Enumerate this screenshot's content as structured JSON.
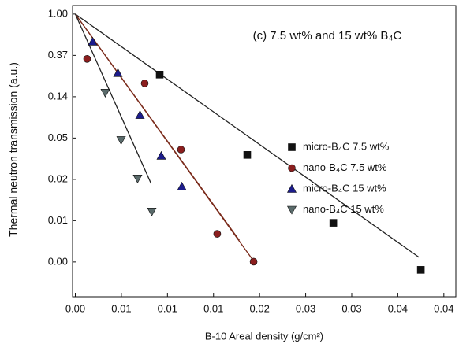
{
  "chart_data": {
    "type": "scatter",
    "title": "(c) 7.5 wt% and 15 wt% B₄C",
    "x_label": "B-10 Areal density (g/cm²)",
    "y_label": "Thermal neutron transmission (a.u.)",
    "log_y": true,
    "xlim": [
      -0.0003,
      0.0413
    ],
    "ylim": [
      0.00107,
      1.23
    ],
    "xticks": [
      {
        "value": 0,
        "label": "0.00"
      },
      {
        "value": 0.005,
        "label": "0.01"
      },
      {
        "value": 0.01,
        "label": "0.01"
      },
      {
        "value": 0.015,
        "label": "0.01"
      },
      {
        "value": 0.02,
        "label": "0.02"
      },
      {
        "value": 0.025,
        "label": "0.03"
      },
      {
        "value": 0.03,
        "label": "0.03"
      },
      {
        "value": 0.035,
        "label": "0.04"
      },
      {
        "value": 0.04,
        "label": "0.04"
      }
    ],
    "yticks": [
      {
        "value": 1,
        "label": "1.00"
      },
      {
        "value": 0.3679,
        "label": "0.37"
      },
      {
        "value": 0.1353,
        "label": "0.14"
      },
      {
        "value": 0.0498,
        "label": "0.05"
      },
      {
        "value": 0.0183,
        "label": "0.02"
      },
      {
        "value": 0.00674,
        "label": "0.01"
      },
      {
        "value": 0.00248,
        "label": "0.00"
      }
    ],
    "series": [
      {
        "name": "micro-B₄C 7.5 wt%",
        "color": "#111111",
        "marker": "square",
        "x": [
          0.00916,
          0.01866,
          0.028,
          0.0375
        ],
        "values": [
          0.231,
          0.0331,
          0.0064,
          0.00205
        ]
      },
      {
        "name": "nano-B₄C 7.5 wt%",
        "color": "#8b1e1e",
        "marker": "circle",
        "x": [
          0.00128,
          0.00753,
          0.01147,
          0.0154,
          0.01935
        ],
        "values": [
          0.338,
          0.187,
          0.0377,
          0.0049,
          0.0025
        ]
      },
      {
        "name": "micro-B₄C 15 wt%",
        "color": "#1c1c8c",
        "marker": "triangle",
        "x": [
          0.00188,
          0.00462,
          0.00702,
          0.00933,
          0.01156
        ],
        "values": [
          0.513,
          0.24,
          0.087,
          0.0324,
          0.0154
        ]
      },
      {
        "name": "nano-B₄C 15 wt%",
        "color": "#5a6b6b",
        "marker": "triangle-down",
        "x": [
          0.00325,
          0.00497,
          0.00676,
          0.0083
        ],
        "values": [
          0.149,
          0.0474,
          0.0187,
          0.0084
        ]
      }
    ],
    "fit_lines": [
      {
        "color": "#222222",
        "x": [
          0,
          0.0373
        ],
        "values": [
          1,
          0.00278
        ]
      },
      {
        "color": "#7a2a1a",
        "x": [
          0,
          0.01943
        ],
        "values": [
          1,
          0.00248
        ]
      },
      {
        "color": "#7a2a1a",
        "x": [
          0,
          0.0178
        ],
        "values": [
          1,
          0.0042
        ]
      },
      {
        "color": "#222222",
        "x": [
          0,
          0.00822
        ],
        "values": [
          1,
          0.0166
        ]
      }
    ]
  }
}
